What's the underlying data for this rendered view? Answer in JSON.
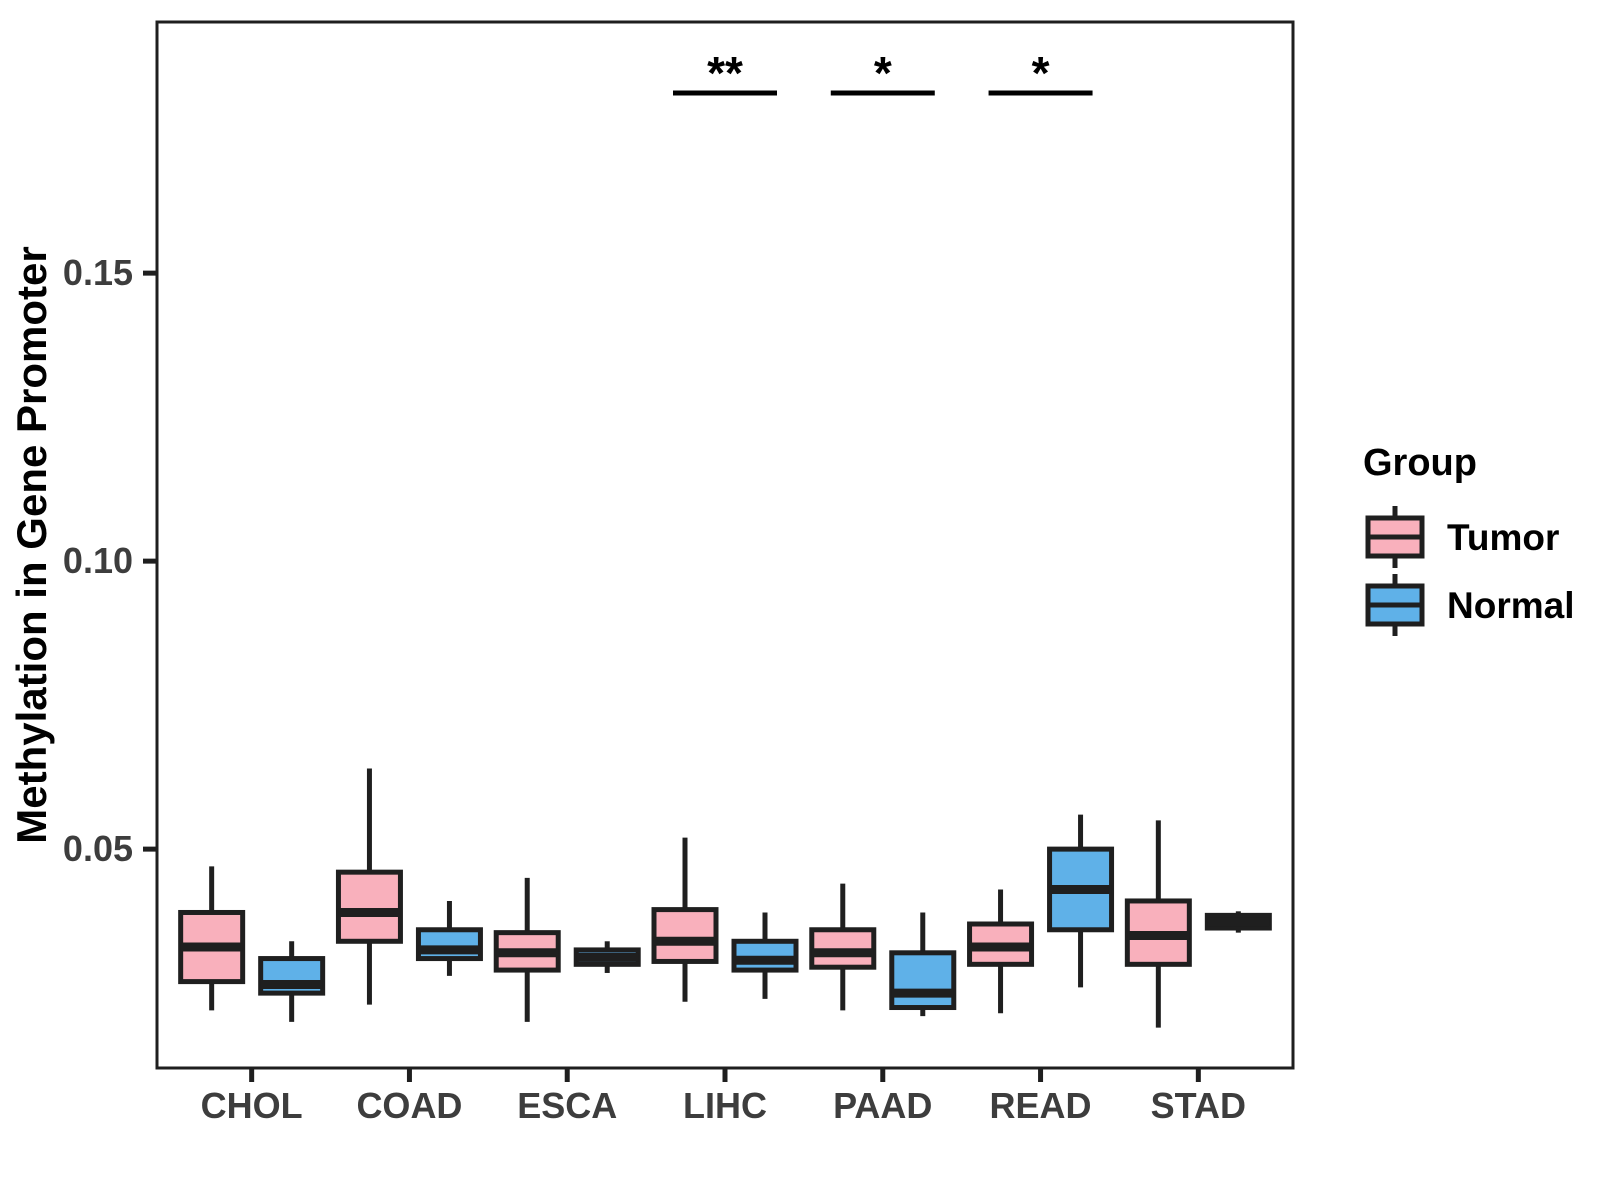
{
  "figure": {
    "background": "#ffffff"
  },
  "chart_data": {
    "type": "boxplot",
    "title": "",
    "xlabel": "",
    "ylabel": "Methylation in Gene Promoter",
    "categories": [
      "CHOL",
      "COAD",
      "ESCA",
      "LIHC",
      "PAAD",
      "READ",
      "STAD"
    ],
    "ylim": [
      0.012,
      0.1936
    ],
    "y_ticks": [
      {
        "value": 0.05,
        "label": "0.05"
      },
      {
        "value": 0.1,
        "label": "0.10"
      },
      {
        "value": 0.15,
        "label": "0.15"
      }
    ],
    "grid": false,
    "legend": {
      "title": "Group",
      "position": "right"
    },
    "groups": [
      {
        "name": "Tumor",
        "color": "#F9B0BC"
      },
      {
        "name": "Normal",
        "color": "#5FB1E8"
      }
    ],
    "styles": {
      "box_border_color": "#1F1F1F",
      "axis_color": "#1F1F1F",
      "tick_label_color": "#3D3D3D",
      "axis_title_color": "#000000",
      "significance_color": "#000000"
    },
    "boxes": [
      {
        "category": "CHOL",
        "group": "Tumor",
        "whisker_low": 0.022,
        "q1": 0.027,
        "median": 0.033,
        "q3": 0.039,
        "whisker_high": 0.047
      },
      {
        "category": "CHOL",
        "group": "Normal",
        "whisker_low": 0.02,
        "q1": 0.025,
        "median": 0.0265,
        "q3": 0.031,
        "whisker_high": 0.034
      },
      {
        "category": "COAD",
        "group": "Tumor",
        "whisker_low": 0.023,
        "q1": 0.034,
        "median": 0.039,
        "q3": 0.046,
        "whisker_high": 0.064
      },
      {
        "category": "COAD",
        "group": "Normal",
        "whisker_low": 0.028,
        "q1": 0.031,
        "median": 0.0325,
        "q3": 0.036,
        "whisker_high": 0.041
      },
      {
        "category": "ESCA",
        "group": "Tumor",
        "whisker_low": 0.02,
        "q1": 0.029,
        "median": 0.032,
        "q3": 0.0355,
        "whisker_high": 0.045
      },
      {
        "category": "ESCA",
        "group": "Normal",
        "whisker_low": 0.0285,
        "q1": 0.03,
        "median": 0.0312,
        "q3": 0.0325,
        "whisker_high": 0.034
      },
      {
        "category": "LIHC",
        "group": "Tumor",
        "whisker_low": 0.0235,
        "q1": 0.0305,
        "median": 0.034,
        "q3": 0.0395,
        "whisker_high": 0.052
      },
      {
        "category": "LIHC",
        "group": "Normal",
        "whisker_low": 0.024,
        "q1": 0.029,
        "median": 0.0307,
        "q3": 0.034,
        "whisker_high": 0.039
      },
      {
        "category": "PAAD",
        "group": "Tumor",
        "whisker_low": 0.022,
        "q1": 0.0295,
        "median": 0.032,
        "q3": 0.036,
        "whisker_high": 0.044
      },
      {
        "category": "PAAD",
        "group": "Normal",
        "whisker_low": 0.021,
        "q1": 0.0225,
        "median": 0.025,
        "q3": 0.032,
        "whisker_high": 0.039
      },
      {
        "category": "READ",
        "group": "Tumor",
        "whisker_low": 0.0215,
        "q1": 0.03,
        "median": 0.033,
        "q3": 0.037,
        "whisker_high": 0.043
      },
      {
        "category": "READ",
        "group": "Normal",
        "whisker_low": 0.026,
        "q1": 0.036,
        "median": 0.043,
        "q3": 0.05,
        "whisker_high": 0.056
      },
      {
        "category": "STAD",
        "group": "Tumor",
        "whisker_low": 0.019,
        "q1": 0.03,
        "median": 0.035,
        "q3": 0.041,
        "whisker_high": 0.055
      },
      {
        "category": "STAD",
        "group": "Normal",
        "whisker_low": 0.0355,
        "q1": 0.0363,
        "median": 0.0374,
        "q3": 0.0385,
        "whisker_high": 0.0392
      }
    ],
    "significance": [
      {
        "category": "LIHC",
        "label": "**"
      },
      {
        "category": "PAAD",
        "label": "*"
      },
      {
        "category": "READ",
        "label": "*"
      }
    ]
  }
}
